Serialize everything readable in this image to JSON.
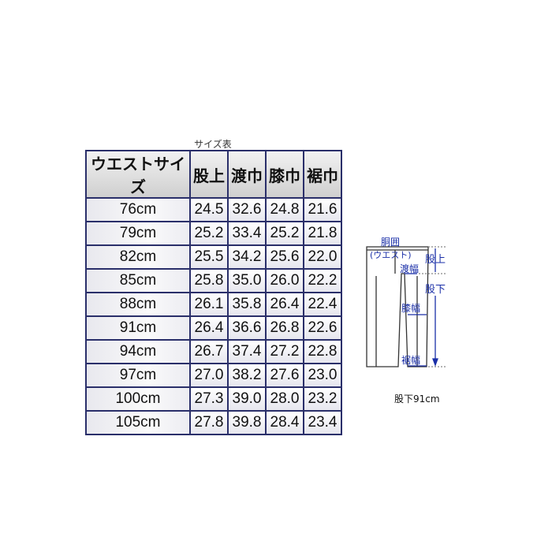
{
  "caption": "サイズ表",
  "table": {
    "headers": [
      "ウエストサイズ",
      "股上",
      "渡巾",
      "膝巾",
      "裾巾"
    ],
    "rows": [
      [
        "76cm",
        "24.5",
        "32.6",
        "24.8",
        "21.6"
      ],
      [
        "79cm",
        "25.2",
        "33.4",
        "25.2",
        "21.8"
      ],
      [
        "82cm",
        "25.5",
        "34.2",
        "25.6",
        "22.0"
      ],
      [
        "85cm",
        "25.8",
        "35.0",
        "26.0",
        "22.2"
      ],
      [
        "88cm",
        "26.1",
        "35.8",
        "26.4",
        "22.4"
      ],
      [
        "91cm",
        "26.4",
        "36.6",
        "26.8",
        "22.6"
      ],
      [
        "94cm",
        "26.7",
        "37.4",
        "27.2",
        "22.8"
      ],
      [
        "97cm",
        "27.0",
        "38.2",
        "27.6",
        "23.0"
      ],
      [
        "100cm",
        "27.3",
        "39.0",
        "28.0",
        "23.2"
      ],
      [
        "105cm",
        "27.8",
        "39.8",
        "28.4",
        "23.4"
      ]
    ]
  },
  "diagram": {
    "waist_label": "胴囲",
    "waist_sub": "(ウエスト)",
    "rise_label": "股上",
    "thigh_label": "渡幅",
    "inseam_label": "股下",
    "knee_label": "膝幅",
    "hem_label": "裾幅",
    "label_color": "#1a2fa8"
  },
  "inseam_note": "股下91cm"
}
